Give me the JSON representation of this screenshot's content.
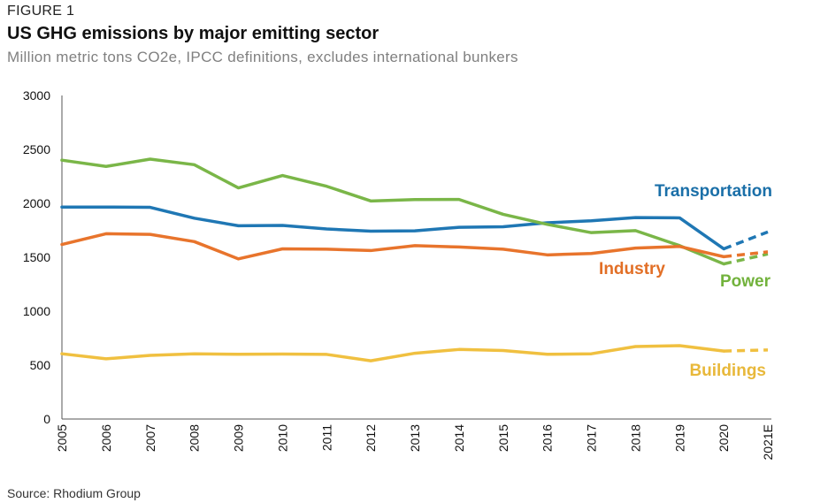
{
  "figure_label": "FIGURE 1",
  "title": "US GHG emissions by major emitting sector",
  "subtitle": "Million metric tons CO2e, IPCC definitions, excludes international bunkers",
  "source": "Source: Rhodium Group",
  "chart_data": {
    "type": "line",
    "title": "US GHG emissions by major emitting sector",
    "subtitle": "Million metric tons CO2e, IPCC definitions, excludes international bunkers",
    "xlabel": "",
    "ylabel": "",
    "categories": [
      "2005",
      "2006",
      "2007",
      "2008",
      "2009",
      "2010",
      "2011",
      "2012",
      "2013",
      "2014",
      "2015",
      "2016",
      "2017",
      "2018",
      "2019",
      "2020",
      "2021E"
    ],
    "ylim": [
      0,
      3000
    ],
    "yticks": [
      0,
      500,
      1000,
      1500,
      2000,
      2500,
      3000
    ],
    "grid": false,
    "legend": "direct labels at right",
    "estimated_from": "2020",
    "series": [
      {
        "name": "Transportation",
        "color": "#1f77b4",
        "label_color": "#1a6fa8",
        "values": [
          1965,
          1965,
          1963,
          1862,
          1792,
          1795,
          1762,
          1742,
          1745,
          1778,
          1783,
          1820,
          1838,
          1868,
          1865,
          1578,
          1735
        ]
      },
      {
        "name": "Power",
        "color": "#7ab648",
        "label_color": "#72b23c",
        "values": [
          2400,
          2342,
          2410,
          2358,
          2143,
          2258,
          2158,
          2022,
          2035,
          2036,
          1898,
          1805,
          1728,
          1747,
          1608,
          1438,
          1530
        ]
      },
      {
        "name": "Industry",
        "color": "#e8742c",
        "label_color": "#e26f26",
        "values": [
          1618,
          1718,
          1712,
          1645,
          1485,
          1578,
          1575,
          1562,
          1608,
          1595,
          1575,
          1522,
          1535,
          1585,
          1600,
          1505,
          1550
        ]
      },
      {
        "name": "Buildings",
        "color": "#f0c040",
        "label_color": "#e8b83a",
        "values": [
          605,
          558,
          590,
          605,
          600,
          602,
          599,
          540,
          610,
          645,
          635,
          600,
          605,
          672,
          680,
          630,
          640
        ]
      }
    ]
  }
}
